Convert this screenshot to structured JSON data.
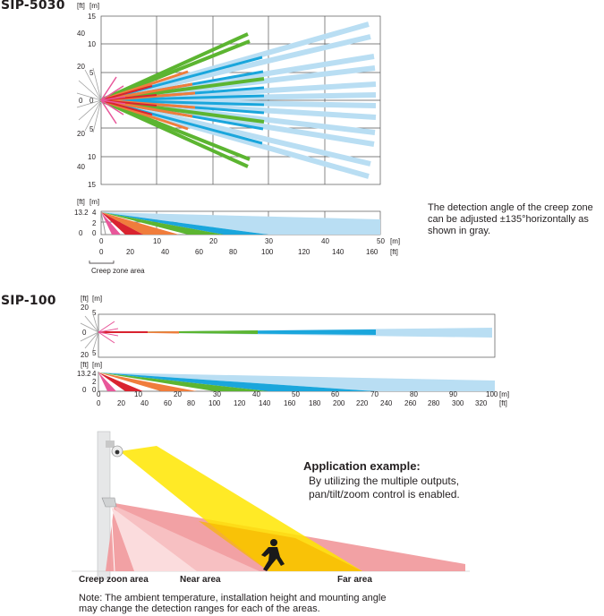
{
  "sip5030": {
    "model": "SIP-5030",
    "units": {
      "ft": "[ft]",
      "m": "[m]"
    },
    "top_left_ft": [
      "40",
      "20",
      "20",
      "40"
    ],
    "top_left_m": [
      "15",
      "10",
      "5",
      "0",
      "5",
      "10",
      "15"
    ],
    "top_zero_ft": "0",
    "side_left_ft": [
      "13.2",
      "0"
    ],
    "side_left_m": [
      "4",
      "2",
      "0"
    ],
    "x_m": [
      "0",
      "10",
      "20",
      "30",
      "40",
      "50"
    ],
    "x_ft": [
      "0",
      "20",
      "40",
      "60",
      "80",
      "100",
      "120",
      "140",
      "160"
    ],
    "x_unit_m": "[m]",
    "x_unit_ft": "[ft]",
    "creep_label": "Creep zone area"
  },
  "creep_note": [
    "The detection angle of the creep zone",
    "can be adjusted  ±135°horizontally as",
    "shown in gray."
  ],
  "sip100": {
    "model": "SIP-100",
    "units": {
      "ft": "[ft]",
      "m": "[m]"
    },
    "top_ft": [
      "20",
      "0",
      "20"
    ],
    "top_m": [
      "5",
      "5"
    ],
    "side_ft": [
      "13.2",
      "0"
    ],
    "side_m": [
      "4",
      "2",
      "0"
    ],
    "x_m": [
      "0",
      "10",
      "20",
      "30",
      "40",
      "50",
      "60",
      "70",
      "80",
      "90",
      "100"
    ],
    "x_ft": [
      "0",
      "20",
      "40",
      "60",
      "80",
      "100",
      "120",
      "140",
      "160",
      "180",
      "200",
      "220",
      "240",
      "260",
      "280",
      "300",
      "320"
    ],
    "x_unit_m": "[m]",
    "x_unit_ft": "[ft]"
  },
  "application": {
    "title": "Application example:",
    "body": [
      "By utilizing the multiple outputs,",
      "pan/tilt/zoom control is enabled."
    ],
    "zones": [
      "Creep zoon area",
      "Near area",
      "Far area"
    ]
  },
  "note": [
    "Note: The ambient temperature, installation height and mounting angle",
    "may change the detection ranges for each of the areas."
  ],
  "colors": {
    "pink": "#e8579a",
    "red": "#d9232f",
    "orange": "#f07d3c",
    "green": "#5cb531",
    "blue": "#1aa6dc",
    "lightblue": "#b9def3",
    "yellow": "#ffe600",
    "salmon": "#f1979a",
    "gray": "#9a9a9a"
  }
}
